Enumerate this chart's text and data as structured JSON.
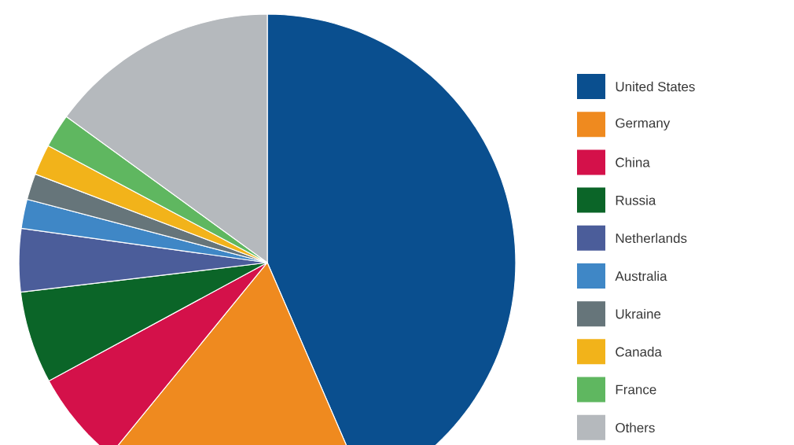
{
  "chart_data": {
    "type": "pie",
    "categories": [
      "United States",
      "Germany",
      "China",
      "Russia",
      "Netherlands",
      "Australia",
      "Ukraine",
      "Canada",
      "France",
      "Others"
    ],
    "values": [
      43.5,
      17.4,
      6.2,
      6.0,
      4.1,
      1.9,
      1.7,
      2.0,
      2.2,
      15.0
    ],
    "colors": [
      "#0a4f8f",
      "#ef8a1f",
      "#d4114a",
      "#0b6528",
      "#4b5d9a",
      "#3f87c6",
      "#66757a",
      "#f2b31a",
      "#5fb760",
      "#b5b9bd"
    ],
    "legend": "right"
  }
}
